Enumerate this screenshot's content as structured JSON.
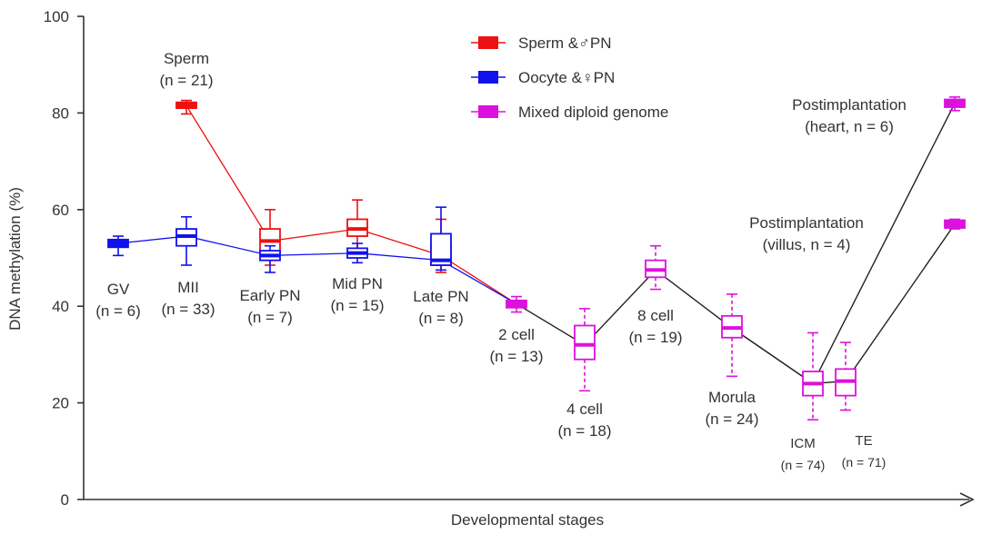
{
  "chart_data": {
    "type": "box",
    "title": "",
    "xlabel": "Developmental stages",
    "ylabel": "DNA methylation (%)",
    "ylim": [
      0,
      100
    ],
    "yticks": [
      0,
      20,
      40,
      60,
      80,
      100
    ],
    "colors": {
      "sperm": "#ee1111",
      "oocyte": "#1111ee",
      "mixed": "#dd11dd",
      "trajectory": "#222222"
    },
    "legend": [
      {
        "key": "sperm",
        "label": "Sperm &♂PN"
      },
      {
        "key": "oocyte",
        "label": "Oocyte &♀PN"
      },
      {
        "key": "mixed",
        "label": "Mixed diploid genome"
      }
    ],
    "stages": [
      {
        "id": "gv",
        "label": "GV",
        "n": "(n = 6)"
      },
      {
        "id": "mii",
        "label": "MII",
        "n": "(n = 33)"
      },
      {
        "id": "sperm",
        "label": "Sperm",
        "n": "(n = 21)"
      },
      {
        "id": "early_pn",
        "label": "Early PN",
        "n": "(n = 7)"
      },
      {
        "id": "mid_pn",
        "label": "Mid PN",
        "n": "(n = 15)"
      },
      {
        "id": "late_pn",
        "label": "Late PN",
        "n": "(n = 8)"
      },
      {
        "id": "cell2",
        "label": "2 cell",
        "n": "(n = 13)"
      },
      {
        "id": "cell4",
        "label": "4 cell",
        "n": "(n = 18)"
      },
      {
        "id": "cell8",
        "label": "8 cell",
        "n": "(n = 19)"
      },
      {
        "id": "morula",
        "label": "Morula",
        "n": "(n = 24)"
      },
      {
        "id": "icm",
        "label": "ICM",
        "n": "(n = 74)"
      },
      {
        "id": "te",
        "label": "TE",
        "n": "(n = 71)"
      },
      {
        "id": "heart",
        "label": "Postimplantation",
        "n": "(heart, n = 6)"
      },
      {
        "id": "villus",
        "label": "Postimplantation",
        "n": "(villus, n = 4)"
      }
    ],
    "series": [
      {
        "name": "Sperm &♂PN",
        "key": "sperm",
        "boxes": [
          {
            "stage": "sperm",
            "median": 81.5,
            "q1": 81,
            "q3": 82.2,
            "whisker_low": 79.8,
            "whisker_high": 82.6
          },
          {
            "stage": "early_pn",
            "median": 53.5,
            "q1": 51,
            "q3": 56,
            "whisker_low": 48.5,
            "whisker_high": 60
          },
          {
            "stage": "mid_pn",
            "median": 56,
            "q1": 54.5,
            "q3": 58,
            "whisker_low": 51,
            "whisker_high": 62
          },
          {
            "stage": "late_pn",
            "median": 50.5,
            "q1": 48.5,
            "q3": 53,
            "whisker_low": 47,
            "whisker_high": 58
          }
        ]
      },
      {
        "name": "Oocyte &♀PN",
        "key": "oocyte",
        "boxes": [
          {
            "stage": "gv",
            "median": 53,
            "q1": 52.2,
            "q3": 53.8,
            "whisker_low": 50.5,
            "whisker_high": 54.5
          },
          {
            "stage": "mii",
            "median": 54.5,
            "q1": 52.5,
            "q3": 56,
            "whisker_low": 48.5,
            "whisker_high": 58.5
          },
          {
            "stage": "early_pn",
            "median": 50.5,
            "q1": 49.5,
            "q3": 51.5,
            "whisker_low": 47,
            "whisker_high": 52.5
          },
          {
            "stage": "mid_pn",
            "median": 51,
            "q1": 50,
            "q3": 52,
            "whisker_low": 49,
            "whisker_high": 53
          },
          {
            "stage": "late_pn",
            "median": 49.5,
            "q1": 48.5,
            "q3": 55,
            "whisker_low": 47.5,
            "whisker_high": 60.5
          }
        ]
      },
      {
        "name": "Mixed diploid genome",
        "key": "mixed",
        "boxes": [
          {
            "stage": "cell2",
            "median": 40.5,
            "q1": 39.7,
            "q3": 41.2,
            "whisker_low": 38.8,
            "whisker_high": 42
          },
          {
            "stage": "cell4",
            "median": 32,
            "q1": 29,
            "q3": 36,
            "whisker_low": 22.5,
            "whisker_high": 39.5
          },
          {
            "stage": "cell8",
            "median": 47.5,
            "q1": 46,
            "q3": 49.5,
            "whisker_low": 43.5,
            "whisker_high": 52.5
          },
          {
            "stage": "morula",
            "median": 35.5,
            "q1": 33.5,
            "q3": 38,
            "whisker_low": 25.5,
            "whisker_high": 42.5
          },
          {
            "stage": "icm",
            "median": 24,
            "q1": 21.5,
            "q3": 26.5,
            "whisker_low": 16.5,
            "whisker_high": 34.5
          },
          {
            "stage": "te",
            "median": 24.5,
            "q1": 21.5,
            "q3": 27,
            "whisker_low": 18.5,
            "whisker_high": 32.5
          },
          {
            "stage": "heart",
            "median": 82,
            "q1": 81.2,
            "q3": 82.8,
            "whisker_low": 80.5,
            "whisker_high": 83.3
          },
          {
            "stage": "villus",
            "median": 57,
            "q1": 56.2,
            "q3": 57.8,
            "whisker_low": 56,
            "whisker_high": 58
          }
        ]
      }
    ],
    "lines": [
      {
        "key": "sperm",
        "points": [
          [
            "sperm",
            81.5
          ],
          [
            "early_pn",
            53.5
          ],
          [
            "mid_pn",
            56
          ],
          [
            "late_pn",
            50.5
          ],
          [
            "cell2",
            40.5
          ]
        ]
      },
      {
        "key": "oocyte",
        "points": [
          [
            "gv",
            53
          ],
          [
            "mii",
            54.5
          ],
          [
            "early_pn",
            50.5
          ],
          [
            "mid_pn",
            51
          ],
          [
            "late_pn",
            49.5
          ],
          [
            "cell2",
            40.5
          ]
        ]
      },
      {
        "key": "trajectory",
        "points": [
          [
            "cell2",
            40.5
          ],
          [
            "cell4",
            32
          ],
          [
            "cell8",
            47.5
          ],
          [
            "morula",
            35.5
          ],
          [
            "icm",
            24
          ],
          [
            "te",
            24.5
          ],
          [
            "villus",
            57
          ]
        ]
      },
      {
        "key": "trajectory",
        "points": [
          [
            "morula",
            35.5
          ],
          [
            "icm",
            24
          ],
          [
            "heart",
            82
          ]
        ]
      }
    ]
  }
}
